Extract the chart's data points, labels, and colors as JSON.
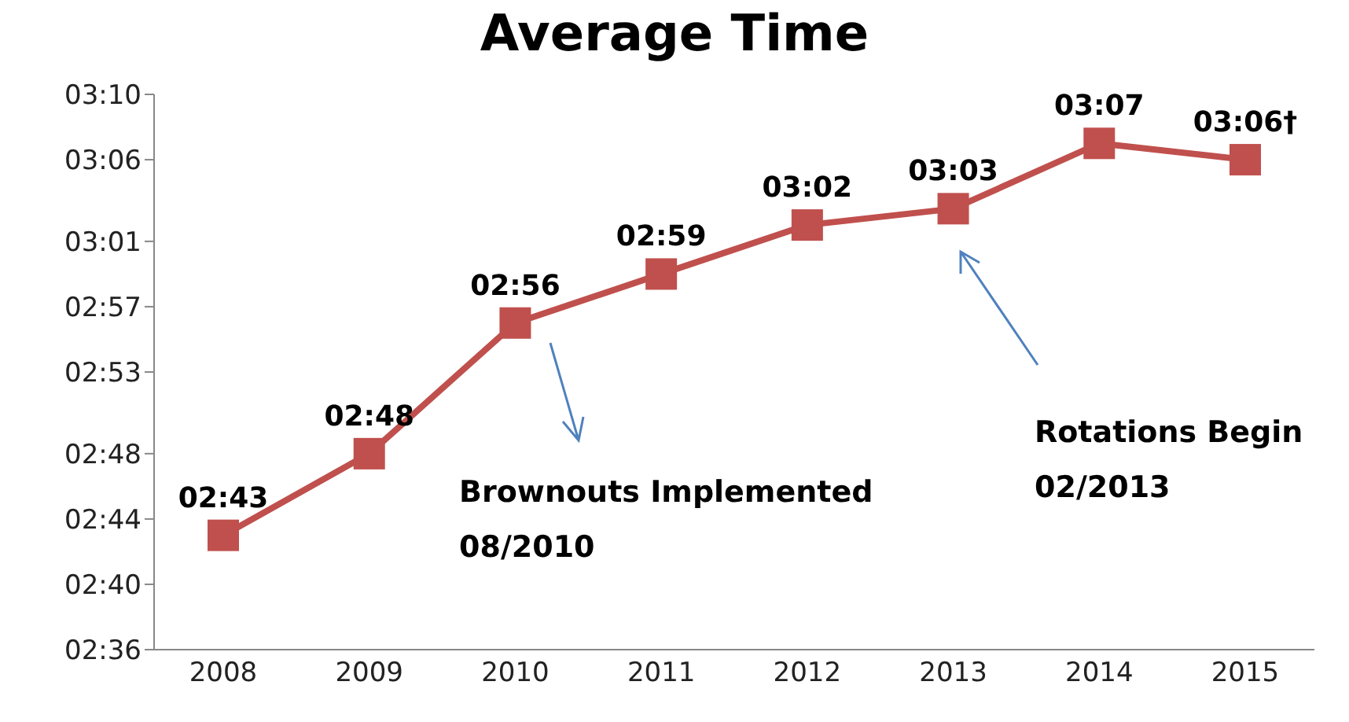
{
  "chart_data": {
    "type": "line",
    "title": "Average Time",
    "categories": [
      "2008",
      "2009",
      "2010",
      "2011",
      "2012",
      "2013",
      "2014",
      "2015"
    ],
    "series": [
      {
        "color": "#c0504d",
        "values": [
          163,
          168,
          176,
          179,
          182,
          183,
          187,
          186
        ],
        "value_labels": [
          "02:43",
          "02:48",
          "02:56",
          "02:59",
          "03:02",
          "03:03",
          "03:07",
          "03:06†"
        ]
      }
    ],
    "ylim": [
      156,
      190
    ],
    "yticks": [
      {
        "value": 156,
        "label": "02:36"
      },
      {
        "value": 160,
        "label": "02:40"
      },
      {
        "value": 164,
        "label": "02:44"
      },
      {
        "value": 168,
        "label": "02:48"
      },
      {
        "value": 173,
        "label": "02:53"
      },
      {
        "value": 177,
        "label": "02:57"
      },
      {
        "value": 181,
        "label": "03:01"
      },
      {
        "value": 186,
        "label": "03:06"
      },
      {
        "value": 190,
        "label": "03:10"
      }
    ],
    "grid": false,
    "legend": false,
    "marker": "square",
    "line_style": "solid",
    "annotations": [
      "Brownouts Implemented\n08/2010",
      "Rotations Begin\n02/2013"
    ]
  }
}
